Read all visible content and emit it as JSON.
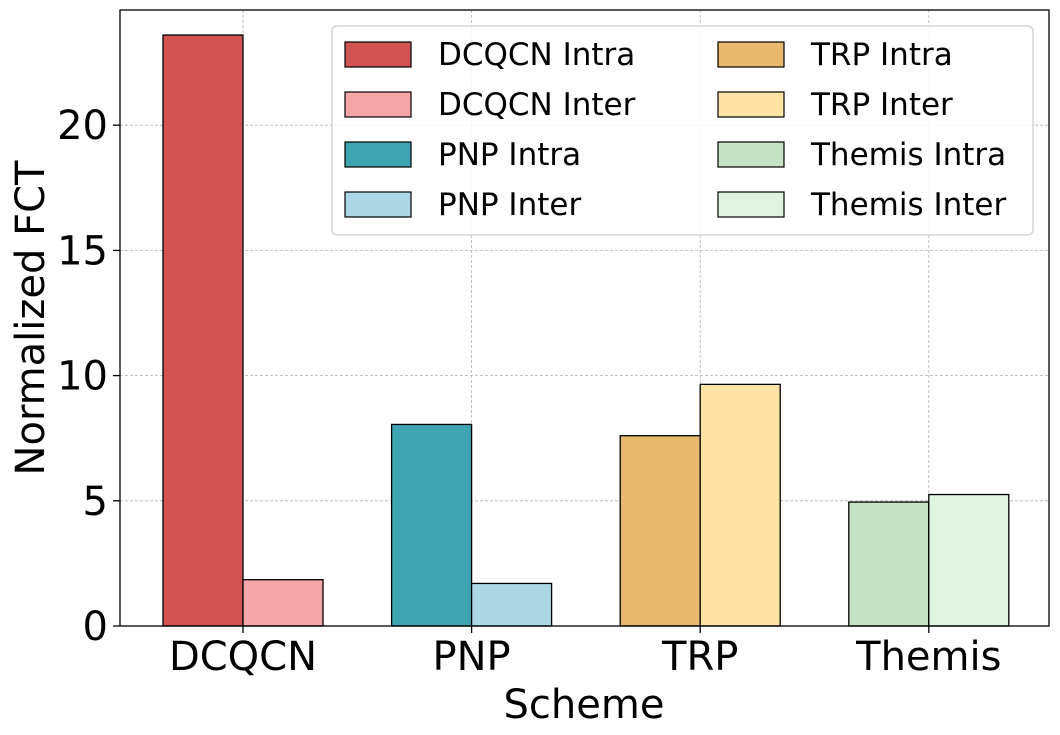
{
  "chart_data": {
    "type": "bar",
    "xlabel": "Scheme",
    "ylabel": "Normalized FCT",
    "ylim": [
      0,
      24.6
    ],
    "yticks": [
      0,
      5,
      10,
      15,
      20
    ],
    "grid": true,
    "legend_position": "top-right",
    "categories": [
      "DCQCN",
      "PNP",
      "TRP",
      "Themis"
    ],
    "groups": [
      {
        "category": "DCQCN",
        "bars": [
          {
            "name": "DCQCN Intra",
            "value": 23.6,
            "color": "#d15454"
          },
          {
            "name": "DCQCN Inter",
            "value": 1.85,
            "color": "#f4a6a9"
          }
        ]
      },
      {
        "category": "PNP",
        "bars": [
          {
            "name": "PNP Intra",
            "value": 8.05,
            "color": "#3ea4b1"
          },
          {
            "name": "PNP Inter",
            "value": 1.7,
            "color": "#acd8e5"
          }
        ]
      },
      {
        "category": "TRP",
        "bars": [
          {
            "name": "TRP Intra",
            "value": 7.6,
            "color": "#e8b86e"
          },
          {
            "name": "TRP Inter",
            "value": 9.65,
            "color": "#fde3a4"
          }
        ]
      },
      {
        "category": "Themis",
        "bars": [
          {
            "name": "Themis Intra",
            "value": 4.95,
            "color": "#c5e2c4"
          },
          {
            "name": "Themis Inter",
            "value": 5.25,
            "color": "#e0f3e1"
          }
        ]
      }
    ],
    "legend": [
      {
        "label": "DCQCN Intra",
        "color": "#d15454"
      },
      {
        "label": "DCQCN Inter",
        "color": "#f4a6a9"
      },
      {
        "label": "PNP Intra",
        "color": "#3ea4b1"
      },
      {
        "label": "PNP Inter",
        "color": "#acd8e5"
      },
      {
        "label": "TRP Intra",
        "color": "#e8b86e"
      },
      {
        "label": "TRP Inter",
        "color": "#fde3a4"
      },
      {
        "label": "Themis Intra",
        "color": "#c5e2c4"
      },
      {
        "label": "Themis Inter",
        "color": "#e0f3e1"
      }
    ]
  }
}
